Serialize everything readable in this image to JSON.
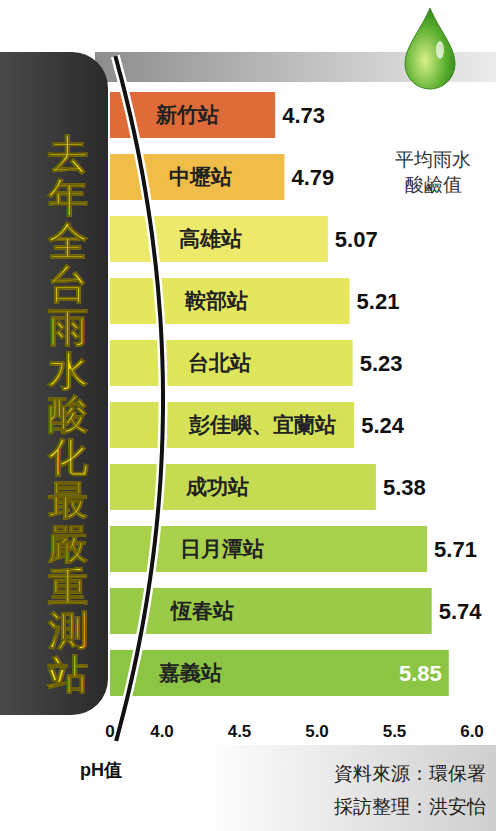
{
  "chart_data": {
    "type": "bar",
    "orientation": "horizontal",
    "title": "去年全台雨水酸化最嚴重測站",
    "annotation": "平均雨水酸鹼值",
    "source": "資料來源：環保署",
    "credit": "採訪整理：洪安怡",
    "x_label": "pH值",
    "categories": [
      "新竹站",
      "中壢站",
      "高雄站",
      "鞍部站",
      "台北站",
      "彭佳嶼、宜蘭站",
      "成功站",
      "日月潭站",
      "恆春站",
      "嘉義站"
    ],
    "values": [
      4.73,
      4.79,
      5.07,
      5.21,
      5.23,
      5.24,
      5.38,
      5.71,
      5.74,
      5.85
    ],
    "colors": [
      "#df6c38",
      "#f0bd48",
      "#ede96a",
      "#e5e75e",
      "#dde55a",
      "#d5e257",
      "#c5dc52",
      "#a9d04b",
      "#9acb48",
      "#8cc443"
    ],
    "xlim": [
      0,
      6.0
    ],
    "xticks": [
      0,
      {
        "value": 4.0,
        "label": "4.0"
      },
      {
        "value": 4.5,
        "label": "4.5"
      },
      {
        "value": 5.0,
        "label": "5.0"
      },
      {
        "value": 5.5,
        "label": "5.5"
      },
      {
        "value": 6.0,
        "label": "6.0"
      }
    ],
    "grid": false,
    "data_labels": true
  }
}
